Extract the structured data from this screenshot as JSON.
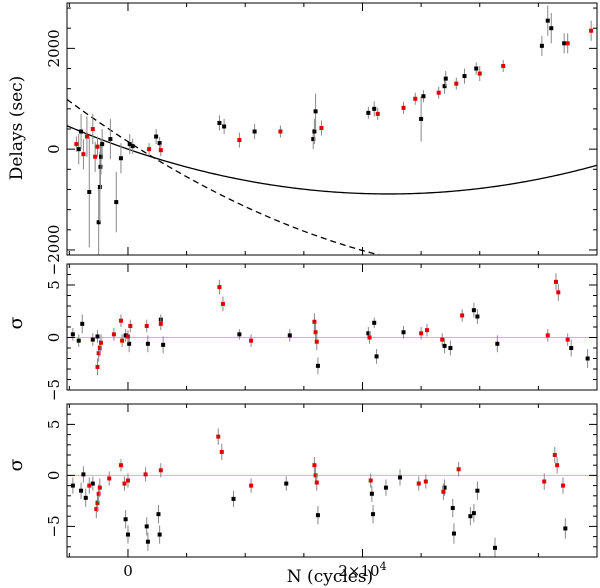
{
  "chart_data": [
    {
      "type": "scatter",
      "panel": "top",
      "ylabel": "Delays (sec)",
      "xlabel": "",
      "xlim": [
        -5200,
        40000
      ],
      "ylim": [
        -2100,
        2900
      ],
      "xticks": [
        0,
        20000
      ],
      "yticks": [
        -2000,
        0,
        2000
      ],
      "ytick_labels": [
        "−2000",
        "0",
        "2000"
      ],
      "model_curves": [
        {
          "name": "solid",
          "style": "solid",
          "a": 0,
          "b": -8,
          "c": 1.8e-06
        },
        {
          "name": "dashed",
          "style": "dashed",
          "a": 150,
          "b": -15,
          "c": 2.1e-06
        }
      ],
      "series": [
        {
          "name": "black",
          "color": "#000000",
          "points": [
            {
              "x": -4200,
              "y": 0,
              "e": 300
            },
            {
              "x": -4000,
              "y": 350,
              "e": 350
            },
            {
              "x": -3300,
              "y": -850,
              "e": 1100
            },
            {
              "x": -2500,
              "y": -1450,
              "e": 700
            },
            {
              "x": -2400,
              "y": -750,
              "e": 700
            },
            {
              "x": -2350,
              "y": -350,
              "e": 450
            },
            {
              "x": -2300,
              "y": -150,
              "e": 350
            },
            {
              "x": -2200,
              "y": 100,
              "e": 300
            },
            {
              "x": -1500,
              "y": 200,
              "e": 400
            },
            {
              "x": -1000,
              "y": -1050,
              "e": 600
            },
            {
              "x": -600,
              "y": -180,
              "e": 300
            },
            {
              "x": 150,
              "y": 100,
              "e": 200
            },
            {
              "x": 400,
              "y": 60,
              "e": 150
            },
            {
              "x": 2400,
              "y": 250,
              "e": 150
            },
            {
              "x": 2700,
              "y": 120,
              "e": 120
            },
            {
              "x": 7800,
              "y": 520,
              "e": 150
            },
            {
              "x": 8200,
              "y": 450,
              "e": 150
            },
            {
              "x": 10800,
              "y": 350,
              "e": 150
            },
            {
              "x": 15800,
              "y": 200,
              "e": 200
            },
            {
              "x": 15900,
              "y": 350,
              "e": 250
            },
            {
              "x": 16000,
              "y": 750,
              "e": 350
            },
            {
              "x": 20500,
              "y": 720,
              "e": 120
            },
            {
              "x": 21000,
              "y": 800,
              "e": 150
            },
            {
              "x": 25000,
              "y": 600,
              "e": 450
            },
            {
              "x": 25200,
              "y": 1050,
              "e": 120
            },
            {
              "x": 27000,
              "y": 1250,
              "e": 150
            },
            {
              "x": 27100,
              "y": 1400,
              "e": 150
            },
            {
              "x": 28700,
              "y": 1450,
              "e": 150
            },
            {
              "x": 29700,
              "y": 1600,
              "e": 120
            },
            {
              "x": 35300,
              "y": 2050,
              "e": 200
            },
            {
              "x": 35800,
              "y": 2550,
              "e": 300
            },
            {
              "x": 36100,
              "y": 2400,
              "e": 300
            },
            {
              "x": 37200,
              "y": 2100,
              "e": 200
            }
          ]
        },
        {
          "name": "red",
          "color": "#e00000",
          "points": [
            {
              "x": -4400,
              "y": 100,
              "e": 150
            },
            {
              "x": -3800,
              "y": -100,
              "e": 300
            },
            {
              "x": -3500,
              "y": 250,
              "e": 400
            },
            {
              "x": -3000,
              "y": 400,
              "e": 300
            },
            {
              "x": -2800,
              "y": -150,
              "e": 300
            },
            {
              "x": -2600,
              "y": 50,
              "e": 200
            },
            {
              "x": 1800,
              "y": 0,
              "e": 120
            },
            {
              "x": 2800,
              "y": -20,
              "e": 120
            },
            {
              "x": 9500,
              "y": 180,
              "e": 150
            },
            {
              "x": 13000,
              "y": 350,
              "e": 120
            },
            {
              "x": 16500,
              "y": 420,
              "e": 150
            },
            {
              "x": 21300,
              "y": 700,
              "e": 120
            },
            {
              "x": 23500,
              "y": 820,
              "e": 120
            },
            {
              "x": 24500,
              "y": 1000,
              "e": 120
            },
            {
              "x": 26500,
              "y": 1120,
              "e": 120
            },
            {
              "x": 28000,
              "y": 1300,
              "e": 120
            },
            {
              "x": 30000,
              "y": 1500,
              "e": 150
            },
            {
              "x": 32000,
              "y": 1650,
              "e": 120
            },
            {
              "x": 37500,
              "y": 2100,
              "e": 200
            },
            {
              "x": 39500,
              "y": 2350,
              "e": 200
            }
          ]
        }
      ]
    },
    {
      "type": "scatter",
      "panel": "middle",
      "ylabel": "σ",
      "xlabel": "",
      "xlim": [
        -5200,
        40000
      ],
      "ylim": [
        -5,
        7
      ],
      "xticks": [
        0,
        20000
      ],
      "yticks": [
        -5,
        0,
        5
      ],
      "ytick_labels": [
        "−5",
        "0",
        "5"
      ],
      "reference_line": {
        "y": 0,
        "color": "#8fe08f"
      },
      "series": [
        {
          "name": "black",
          "color": "#000000",
          "points": [
            {
              "x": -4700,
              "y": 0.3,
              "e": 0.6
            },
            {
              "x": -4200,
              "y": -0.3,
              "e": 0.6
            },
            {
              "x": -3900,
              "y": 1.3,
              "e": 0.9
            },
            {
              "x": -3000,
              "y": -0.2,
              "e": 0.6
            },
            {
              "x": -2600,
              "y": 0.1,
              "e": 0.6
            },
            {
              "x": -200,
              "y": 0.2,
              "e": 0.6
            },
            {
              "x": 100,
              "y": -0.6,
              "e": 0.8
            },
            {
              "x": 1700,
              "y": -0.6,
              "e": 0.8
            },
            {
              "x": 2800,
              "y": 1.7,
              "e": 0.5
            },
            {
              "x": 3000,
              "y": -0.7,
              "e": 0.8
            },
            {
              "x": 9500,
              "y": 0.3,
              "e": 0.5
            },
            {
              "x": 13800,
              "y": 0.2,
              "e": 0.6
            },
            {
              "x": 16200,
              "y": -2.7,
              "e": 0.8
            },
            {
              "x": 20500,
              "y": 0.4,
              "e": 0.6
            },
            {
              "x": 21000,
              "y": 1.4,
              "e": 0.5
            },
            {
              "x": 21200,
              "y": -1.8,
              "e": 0.7
            },
            {
              "x": 23500,
              "y": 0.5,
              "e": 0.6
            },
            {
              "x": 27000,
              "y": -0.8,
              "e": 0.7
            },
            {
              "x": 27500,
              "y": -1.0,
              "e": 0.7
            },
            {
              "x": 29500,
              "y": 2.6,
              "e": 0.7
            },
            {
              "x": 29800,
              "y": 2.0,
              "e": 0.7
            },
            {
              "x": 31500,
              "y": -0.6,
              "e": 0.8
            },
            {
              "x": 37800,
              "y": -1.0,
              "e": 0.8
            },
            {
              "x": 39200,
              "y": -2.0,
              "e": 0.9
            }
          ]
        },
        {
          "name": "red",
          "color": "#e00000",
          "points": [
            {
              "x": -2600,
              "y": -2.8,
              "e": 0.8
            },
            {
              "x": -2500,
              "y": -1.5,
              "e": 0.8
            },
            {
              "x": -2400,
              "y": -1.0,
              "e": 0.8
            },
            {
              "x": -2300,
              "y": -0.5,
              "e": 0.8
            },
            {
              "x": -1200,
              "y": 0.3,
              "e": 0.6
            },
            {
              "x": -600,
              "y": 1.6,
              "e": 0.6
            },
            {
              "x": -500,
              "y": -0.3,
              "e": 0.6
            },
            {
              "x": 0,
              "y": 0.1,
              "e": 0.6
            },
            {
              "x": 200,
              "y": 1.1,
              "e": 0.6
            },
            {
              "x": 1600,
              "y": 1.1,
              "e": 0.6
            },
            {
              "x": 2800,
              "y": 1.3,
              "e": 0.6
            },
            {
              "x": 7800,
              "y": 4.8,
              "e": 0.7
            },
            {
              "x": 8100,
              "y": 3.2,
              "e": 0.7
            },
            {
              "x": 10500,
              "y": -0.3,
              "e": 0.6
            },
            {
              "x": 15900,
              "y": 1.5,
              "e": 0.8
            },
            {
              "x": 16000,
              "y": 0.5,
              "e": 0.8
            },
            {
              "x": 16100,
              "y": -0.4,
              "e": 0.8
            },
            {
              "x": 20600,
              "y": 0.0,
              "e": 0.6
            },
            {
              "x": 25000,
              "y": 0.4,
              "e": 0.6
            },
            {
              "x": 25500,
              "y": 0.7,
              "e": 0.6
            },
            {
              "x": 26800,
              "y": -0.2,
              "e": 0.6
            },
            {
              "x": 28500,
              "y": 2.1,
              "e": 0.6
            },
            {
              "x": 35800,
              "y": 0.2,
              "e": 0.6
            },
            {
              "x": 36500,
              "y": 5.3,
              "e": 0.8
            },
            {
              "x": 36700,
              "y": 4.3,
              "e": 0.8
            },
            {
              "x": 37500,
              "y": -0.2,
              "e": 0.6
            }
          ]
        }
      ]
    },
    {
      "type": "scatter",
      "panel": "bottom",
      "ylabel": "σ",
      "xlabel": "N (cycles)",
      "xlim": [
        -5200,
        40000
      ],
      "ylim": [
        -8,
        7
      ],
      "xticks": [
        0,
        20000
      ],
      "xtick_labels": [
        "0",
        "2×10^4"
      ],
      "yticks": [
        -5,
        0,
        5
      ],
      "ytick_labels": [
        "−5",
        "0",
        "5"
      ],
      "reference_line": {
        "y": 0,
        "color": "#8fe08f"
      },
      "series": [
        {
          "name": "black",
          "color": "#000000",
          "points": [
            {
              "x": -4700,
              "y": -1.0,
              "e": 0.8
            },
            {
              "x": -4000,
              "y": -1.5,
              "e": 0.8
            },
            {
              "x": -3800,
              "y": 0.1,
              "e": 0.8
            },
            {
              "x": -3600,
              "y": -2.2,
              "e": 0.9
            },
            {
              "x": -3000,
              "y": -0.8,
              "e": 0.7
            },
            {
              "x": -200,
              "y": -4.3,
              "e": 0.9
            },
            {
              "x": 0,
              "y": -5.8,
              "e": 0.9
            },
            {
              "x": 1600,
              "y": -5.0,
              "e": 0.9
            },
            {
              "x": 1700,
              "y": -6.5,
              "e": 0.9
            },
            {
              "x": 2600,
              "y": -3.8,
              "e": 0.9
            },
            {
              "x": 2700,
              "y": -5.8,
              "e": 0.9
            },
            {
              "x": 9000,
              "y": -2.3,
              "e": 0.8
            },
            {
              "x": 13500,
              "y": -0.8,
              "e": 0.7
            },
            {
              "x": 16200,
              "y": -3.9,
              "e": 0.9
            },
            {
              "x": 20800,
              "y": -1.8,
              "e": 0.8
            },
            {
              "x": 20900,
              "y": -3.8,
              "e": 0.9
            },
            {
              "x": 22000,
              "y": -1.2,
              "e": 0.8
            },
            {
              "x": 23200,
              "y": -0.2,
              "e": 0.8
            },
            {
              "x": 27000,
              "y": -1.2,
              "e": 0.8
            },
            {
              "x": 27700,
              "y": -3.2,
              "e": 0.9
            },
            {
              "x": 27800,
              "y": -5.7,
              "e": 1.0
            },
            {
              "x": 29200,
              "y": -4.0,
              "e": 0.9
            },
            {
              "x": 29500,
              "y": -3.7,
              "e": 0.9
            },
            {
              "x": 29800,
              "y": -1.5,
              "e": 0.9
            },
            {
              "x": 31300,
              "y": -7.1,
              "e": 1.0
            },
            {
              "x": 37300,
              "y": -5.2,
              "e": 1.0
            }
          ]
        },
        {
          "name": "red",
          "color": "#e00000",
          "points": [
            {
              "x": -3300,
              "y": -1.0,
              "e": 0.8
            },
            {
              "x": -2700,
              "y": -3.3,
              "e": 0.9
            },
            {
              "x": -2600,
              "y": -2.7,
              "e": 0.9
            },
            {
              "x": -2500,
              "y": -1.8,
              "e": 0.9
            },
            {
              "x": -2400,
              "y": -1.2,
              "e": 0.9
            },
            {
              "x": -1600,
              "y": -0.3,
              "e": 0.7
            },
            {
              "x": -600,
              "y": 1.0,
              "e": 0.6
            },
            {
              "x": -300,
              "y": -0.8,
              "e": 0.7
            },
            {
              "x": 0,
              "y": -0.5,
              "e": 0.7
            },
            {
              "x": 1500,
              "y": 0.1,
              "e": 0.7
            },
            {
              "x": 2800,
              "y": 0.5,
              "e": 0.7
            },
            {
              "x": 7700,
              "y": 3.8,
              "e": 0.8
            },
            {
              "x": 8000,
              "y": 2.3,
              "e": 0.8
            },
            {
              "x": 10500,
              "y": -1.0,
              "e": 0.7
            },
            {
              "x": 15900,
              "y": 1.0,
              "e": 0.8
            },
            {
              "x": 16000,
              "y": 0.0,
              "e": 0.8
            },
            {
              "x": 16100,
              "y": -0.7,
              "e": 0.8
            },
            {
              "x": 20700,
              "y": -0.5,
              "e": 0.7
            },
            {
              "x": 24800,
              "y": -0.8,
              "e": 0.7
            },
            {
              "x": 25400,
              "y": -0.6,
              "e": 0.7
            },
            {
              "x": 26900,
              "y": -1.6,
              "e": 0.8
            },
            {
              "x": 28200,
              "y": 0.6,
              "e": 0.7
            },
            {
              "x": 35500,
              "y": -0.6,
              "e": 0.8
            },
            {
              "x": 36400,
              "y": 2.0,
              "e": 0.8
            },
            {
              "x": 36600,
              "y": 1.0,
              "e": 0.8
            },
            {
              "x": 37100,
              "y": -1.0,
              "e": 0.8
            }
          ]
        }
      ]
    }
  ]
}
